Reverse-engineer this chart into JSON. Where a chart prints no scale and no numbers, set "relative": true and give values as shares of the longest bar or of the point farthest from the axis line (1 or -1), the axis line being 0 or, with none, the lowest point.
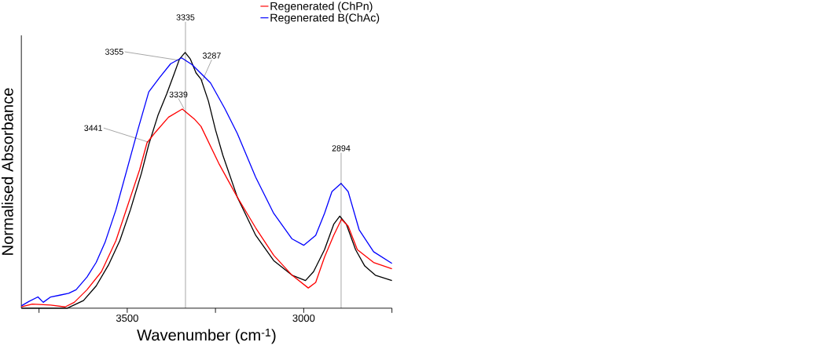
{
  "chart_data": {
    "type": "line",
    "relative": true,
    "xlabel": "Wavenumber (cm$^{-1}$)",
    "ylabel": "Normalised Absorbance",
    "xlim": [
      3800,
      2750
    ],
    "xticks": [
      {
        "value": 3750,
        "label": null
      },
      3500,
      {
        "value": 3250,
        "label": null
      },
      3000,
      {
        "value": 2750,
        "label": null
      }
    ],
    "legend": "top right",
    "line_style": "solid",
    "series": [
      {
        "color": "#000000",
        "x": [
          3800,
          3670,
          3624,
          3588,
          3552,
          3521,
          3491,
          3460,
          3439,
          3413,
          3388,
          3367,
          3352,
          3336,
          3321,
          3305,
          3291,
          3270,
          3250,
          3229,
          3188,
          3136,
          3085,
          3033,
          2995,
          2972,
          2941,
          2915,
          2898,
          2879,
          2853,
          2827,
          2797,
          2750
        ],
        "values": [
          0,
          0,
          0.03,
          0.087,
          0.172,
          0.264,
          0.385,
          0.527,
          0.64,
          0.754,
          0.839,
          0.917,
          0.974,
          1.0,
          0.974,
          0.92,
          0.896,
          0.81,
          0.698,
          0.598,
          0.434,
          0.285,
          0.186,
          0.129,
          0.108,
          0.143,
          0.229,
          0.328,
          0.36,
          0.328,
          0.229,
          0.165,
          0.129,
          0.108
        ]
      },
      {
        "name": "Regenerated (ChPn)",
        "color": "#ff0000",
        "x": [
          3800,
          3769,
          3717,
          3676,
          3650,
          3614,
          3573,
          3532,
          3496,
          3465,
          3444,
          3419,
          3383,
          3344,
          3310,
          3291,
          3239,
          3188,
          3136,
          3085,
          3033,
          2987,
          2966,
          2941,
          2915,
          2893,
          2874,
          2848,
          2802,
          2750
        ],
        "values": [
          0.005,
          0.016,
          0.012,
          0.005,
          0.023,
          0.072,
          0.143,
          0.264,
          0.413,
          0.541,
          0.647,
          0.69,
          0.747,
          0.779,
          0.74,
          0.711,
          0.562,
          0.434,
          0.314,
          0.207,
          0.129,
          0.079,
          0.101,
          0.2,
          0.285,
          0.348,
          0.321,
          0.229,
          0.179,
          0.154
        ]
      },
      {
        "name": "Regenerated B(ChAc)",
        "color": "#0000ff",
        "x": [
          3800,
          3779,
          3753,
          3738,
          3717,
          3691,
          3666,
          3645,
          3614,
          3588,
          3563,
          3532,
          3501,
          3470,
          3439,
          3408,
          3377,
          3346,
          3316,
          3264,
          3224,
          3188,
          3136,
          3085,
          3033,
          3000,
          2966,
          2941,
          2920,
          2894,
          2874,
          2843,
          2802,
          2750
        ],
        "values": [
          0.009,
          0.026,
          0.044,
          0.023,
          0.044,
          0.051,
          0.058,
          0.072,
          0.122,
          0.179,
          0.257,
          0.385,
          0.541,
          0.697,
          0.846,
          0.903,
          0.956,
          0.979,
          0.952,
          0.881,
          0.782,
          0.683,
          0.512,
          0.371,
          0.271,
          0.246,
          0.285,
          0.371,
          0.456,
          0.488,
          0.456,
          0.307,
          0.221,
          0.175
        ]
      }
    ],
    "ref_lines": [
      {
        "axis": "x",
        "value": 3335,
        "label": "3335"
      },
      {
        "axis": "x",
        "value": 2894,
        "label": "2894"
      }
    ],
    "annotations": [
      {
        "text": "3355",
        "x": 3355,
        "y": 0.97
      },
      {
        "text": "3287",
        "x": 3287,
        "y": 0.89
      },
      {
        "text": "3339",
        "x": 3339,
        "y": 0.78
      },
      {
        "text": "3441",
        "x": 3441,
        "y": 0.65
      }
    ]
  }
}
